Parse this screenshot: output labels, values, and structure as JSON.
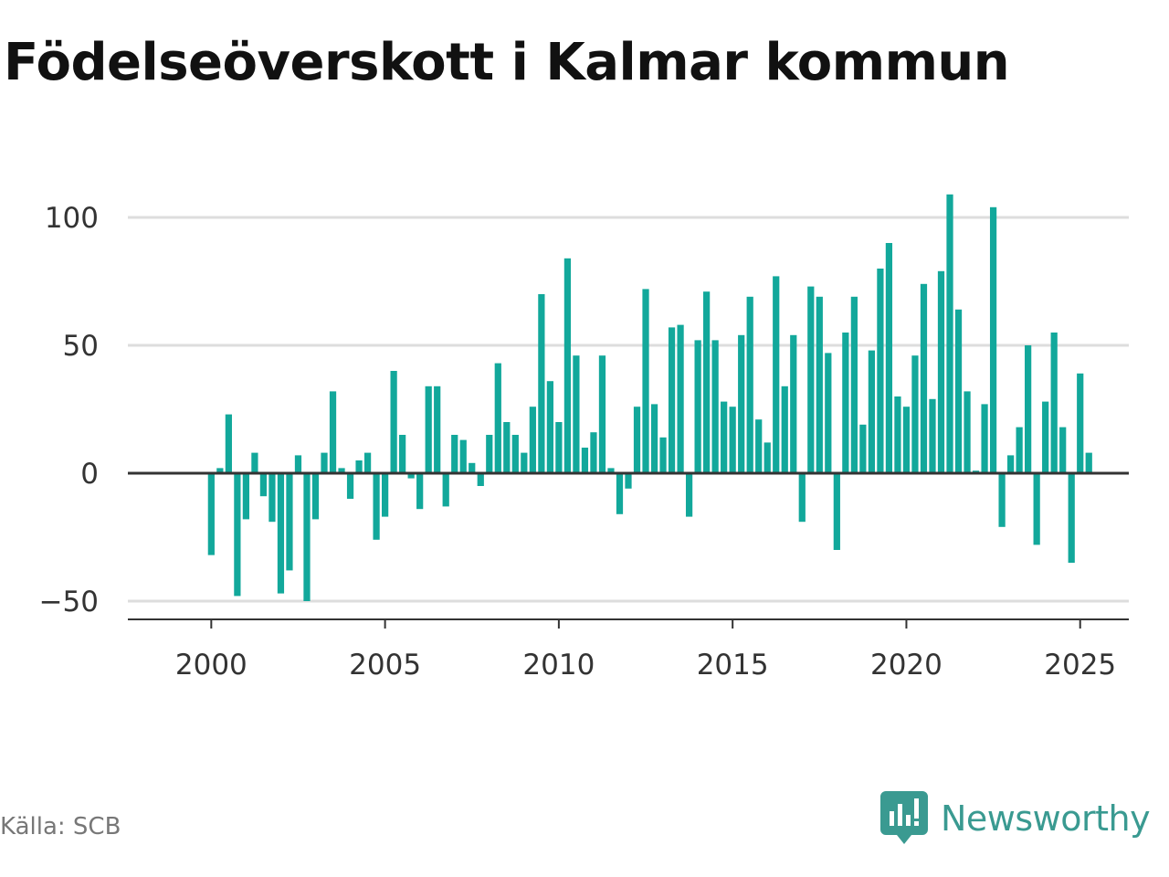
{
  "title": "Födelseöverskott i Kalmar kommun",
  "source": "Källa: SCB",
  "brand": {
    "name": "Newsworthy",
    "icon": "newsworthy-logo-icon",
    "color": "#3a9a91"
  },
  "colors": {
    "bar": "#12a89b",
    "grid": "#dddddd",
    "zero_line": "#333333"
  },
  "chart_data": {
    "type": "bar",
    "title": "Födelseöverskott i Kalmar kommun",
    "xlabel": "",
    "ylabel": "",
    "xlim": [
      1997.6,
      2026.4
    ],
    "ylim": [
      -57,
      110
    ],
    "grid": true,
    "legend": "none",
    "x_ticks": [
      2000,
      2005,
      2010,
      2015,
      2020,
      2025
    ],
    "y_ticks": [
      -50,
      0,
      50,
      100
    ],
    "y_tick_labels": [
      "−50",
      "0",
      "50",
      "100"
    ],
    "x": [
      "2000 Q1",
      "2000 Q2",
      "2000 Q3",
      "2000 Q4",
      "2001 Q1",
      "2001 Q2",
      "2001 Q3",
      "2001 Q4",
      "2002 Q1",
      "2002 Q2",
      "2002 Q3",
      "2002 Q4",
      "2003 Q1",
      "2003 Q2",
      "2003 Q3",
      "2003 Q4",
      "2004 Q1",
      "2004 Q2",
      "2004 Q3",
      "2004 Q4",
      "2005 Q1",
      "2005 Q2",
      "2005 Q3",
      "2005 Q4",
      "2006 Q1",
      "2006 Q2",
      "2006 Q3",
      "2006 Q4",
      "2007 Q1",
      "2007 Q2",
      "2007 Q3",
      "2007 Q4",
      "2008 Q1",
      "2008 Q2",
      "2008 Q3",
      "2008 Q4",
      "2009 Q1",
      "2009 Q2",
      "2009 Q3",
      "2009 Q4",
      "2010 Q1",
      "2010 Q2",
      "2010 Q3",
      "2010 Q4",
      "2011 Q1",
      "2011 Q2",
      "2011 Q3",
      "2011 Q4",
      "2012 Q1",
      "2012 Q2",
      "2012 Q3",
      "2012 Q4",
      "2013 Q1",
      "2013 Q2",
      "2013 Q3",
      "2013 Q4",
      "2014 Q1",
      "2014 Q2",
      "2014 Q3",
      "2014 Q4",
      "2015 Q1",
      "2015 Q2",
      "2015 Q3",
      "2015 Q4",
      "2016 Q1",
      "2016 Q2",
      "2016 Q3",
      "2016 Q4",
      "2017 Q1",
      "2017 Q2",
      "2017 Q3",
      "2017 Q4",
      "2018 Q1",
      "2018 Q2",
      "2018 Q3",
      "2018 Q4",
      "2019 Q1",
      "2019 Q2",
      "2019 Q3",
      "2019 Q4",
      "2020 Q1",
      "2020 Q2",
      "2020 Q3",
      "2020 Q4",
      "2021 Q1",
      "2021 Q2",
      "2021 Q3",
      "2021 Q4",
      "2022 Q1",
      "2022 Q2",
      "2022 Q3",
      "2022 Q4",
      "2023 Q1",
      "2023 Q2",
      "2023 Q3",
      "2023 Q4",
      "2024 Q1",
      "2024 Q2",
      "2024 Q3",
      "2024 Q4",
      "2025 Q1",
      "2025 Q2"
    ],
    "values": [
      -32,
      2,
      23,
      -48,
      -18,
      8,
      -9,
      -19,
      -47,
      -38,
      7,
      -50,
      -18,
      8,
      32,
      2,
      -10,
      5,
      8,
      -26,
      -17,
      40,
      15,
      -2,
      -14,
      34,
      34,
      -13,
      15,
      13,
      4,
      -5,
      15,
      43,
      20,
      15,
      8,
      26,
      70,
      36,
      20,
      84,
      46,
      10,
      16,
      46,
      2,
      -16,
      -6,
      26,
      72,
      27,
      14,
      57,
      58,
      -17,
      52,
      71,
      52,
      28,
      26,
      54,
      69,
      21,
      12,
      77,
      34,
      54,
      -19,
      73,
      69,
      47,
      -30,
      55,
      69,
      19,
      48,
      80,
      90,
      30,
      26,
      46,
      74,
      29,
      79,
      109,
      64,
      32,
      1,
      27,
      104,
      -21,
      7,
      18,
      50,
      -28,
      28,
      55,
      18,
      -35,
      39,
      8
    ]
  }
}
